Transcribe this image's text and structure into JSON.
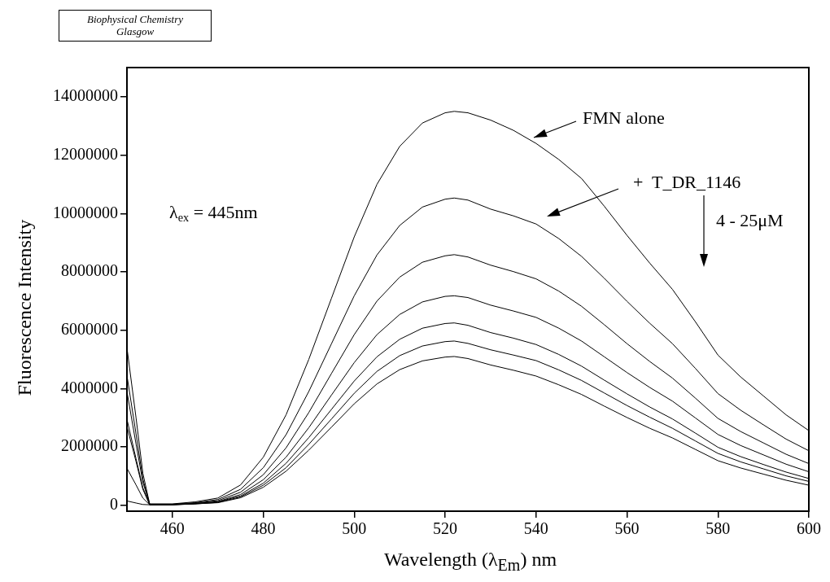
{
  "chart_data": {
    "type": "line",
    "xlabel": "Wavelength (λ$_{Em}$) nm",
    "ylabel": "Fluorescence Intensity",
    "xlim": [
      450,
      600
    ],
    "xticks": [
      460,
      480,
      500,
      520,
      540,
      560,
      580,
      600
    ],
    "ylim": [
      -200000,
      15000000
    ],
    "yticks": [
      0,
      2000000,
      4000000,
      6000000,
      8000000,
      10000000,
      12000000,
      14000000
    ],
    "marker": "none",
    "line_style": "solid",
    "annotations": [
      "Biophysical Chemistry Glasgow",
      "λ$_{ex}$ = 445nm",
      {
        "text": "FMN alone",
        "x": 539.5,
        "y": 12600000
      },
      "+  T_DR_1146",
      "4 - 25μM"
    ],
    "x": [
      450,
      452,
      453.5,
      455,
      460,
      465,
      470,
      475,
      480,
      485,
      490,
      495,
      500,
      505,
      510,
      515,
      520,
      522,
      525,
      530,
      535,
      540,
      545,
      550,
      555,
      560,
      565,
      570,
      575,
      580,
      585,
      590,
      595,
      600
    ],
    "series": [
      {
        "color": "#000000",
        "values": [
          5400000,
          3000000,
          1100000,
          50000,
          50000,
          120000,
          250000,
          700000,
          1650000,
          3100000,
          5000000,
          7100000,
          9200000,
          11000000,
          12300000,
          13100000,
          13450000,
          13500000,
          13450000,
          13200000,
          12850000,
          12400000,
          11850000,
          11200000,
          10250000,
          9250000,
          8300000,
          7400000,
          6300000,
          5150000,
          4400000,
          3750000,
          3100000,
          2560000
        ]
      },
      {
        "color": "#000000",
        "values": [
          4450000,
          2450000,
          900000,
          40000,
          40000,
          90000,
          200000,
          550000,
          1290000,
          2420000,
          3900000,
          5540000,
          7180000,
          8580000,
          9590000,
          10220000,
          10490000,
          10530000,
          10460000,
          10150000,
          9920000,
          9640000,
          9140000,
          8530000,
          7780000,
          6990000,
          6240000,
          5540000,
          4700000,
          3830000,
          3260000,
          2760000,
          2270000,
          1870000
        ]
      },
      {
        "color": "#000000",
        "values": [
          3900000,
          2100000,
          800000,
          30000,
          30000,
          80000,
          160000,
          450000,
          1050000,
          1970000,
          3180000,
          4520000,
          5850000,
          7000000,
          7820000,
          8330000,
          8550000,
          8590000,
          8510000,
          8230000,
          8010000,
          7760000,
          7340000,
          6820000,
          6190000,
          5540000,
          4930000,
          4360000,
          3680000,
          2980000,
          2530000,
          2140000,
          1750000,
          1430000
        ]
      },
      {
        "color": "#000000",
        "values": [
          2950000,
          1600000,
          600000,
          30000,
          30000,
          60000,
          130000,
          370000,
          880000,
          1650000,
          2660000,
          3780000,
          4890000,
          5850000,
          6540000,
          6970000,
          7160000,
          7180000,
          7120000,
          6860000,
          6660000,
          6440000,
          6070000,
          5630000,
          5090000,
          4550000,
          4040000,
          3570000,
          3000000,
          2430000,
          2050000,
          1730000,
          1410000,
          1150000
        ]
      },
      {
        "color": "#000000",
        "values": [
          2700000,
          1500000,
          550000,
          20000,
          20000,
          60000,
          120000,
          320000,
          760000,
          1440000,
          2320000,
          3290000,
          4260000,
          5090000,
          5690000,
          6070000,
          6230000,
          6250000,
          6170000,
          5920000,
          5730000,
          5510000,
          5170000,
          4770000,
          4290000,
          3820000,
          3370000,
          2960000,
          2480000,
          1990000,
          1670000,
          1400000,
          1140000,
          920000
        ]
      },
      {
        "color": "#000000",
        "values": [
          1270000,
          700000,
          250000,
          20000,
          20000,
          50000,
          100000,
          290000,
          690000,
          1290000,
          2090000,
          2960000,
          3840000,
          4590000,
          5130000,
          5460000,
          5610000,
          5630000,
          5550000,
          5330000,
          5150000,
          4960000,
          4640000,
          4280000,
          3850000,
          3420000,
          3020000,
          2640000,
          2210000,
          1780000,
          1490000,
          1250000,
          1010000,
          820000
        ]
      },
      {
        "color": "#000000",
        "values": [
          150000,
          80000,
          30000,
          20000,
          20000,
          50000,
          90000,
          260000,
          620000,
          1170000,
          1890000,
          2680000,
          3480000,
          4160000,
          4650000,
          4950000,
          5080000,
          5100000,
          5030000,
          4810000,
          4630000,
          4430000,
          4130000,
          3800000,
          3400000,
          3010000,
          2640000,
          2310000,
          1920000,
          1530000,
          1280000,
          1070000,
          860000,
          690000
        ]
      }
    ]
  }
}
